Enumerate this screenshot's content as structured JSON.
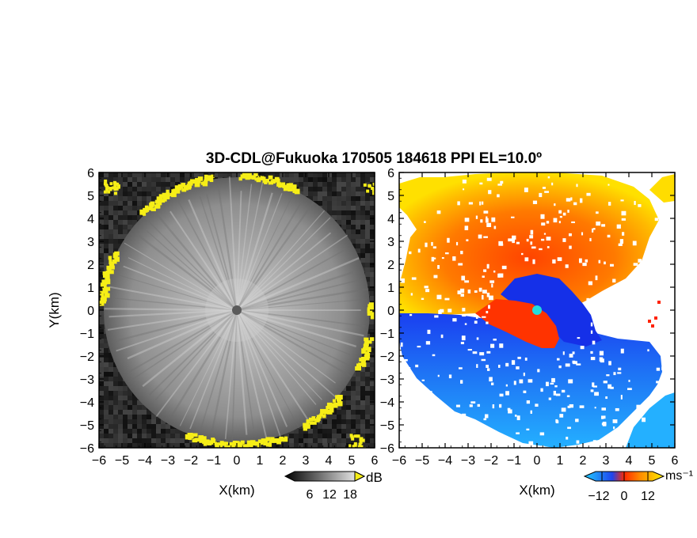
{
  "title": "3D-CDL@Fukuoka 170505 184618 PPI EL=10.0º",
  "chart_data": [
    {
      "type": "heatmap",
      "name": "backscatter-intensity",
      "xlabel": "X(km)",
      "ylabel": "Y(km)",
      "xlim": [
        -6,
        6
      ],
      "ylim": [
        -6,
        6
      ],
      "xticks": [
        "−6",
        "−5",
        "−4",
        "−3",
        "−2",
        "−1",
        "0",
        "1",
        "2",
        "3",
        "4",
        "5",
        "6"
      ],
      "yticks": [
        "6",
        "5",
        "4",
        "3",
        "2",
        "1",
        "0",
        "−1",
        "−2",
        "−3",
        "−4",
        "−5",
        "−6"
      ],
      "colorbar": {
        "unit": "dB",
        "ticks": [
          "6",
          "12",
          "18"
        ],
        "colormap": "grayscale",
        "extremes": [
          "black",
          "yellow"
        ]
      },
      "colors": {
        "background": "#1a1a1a",
        "inner": "#b4b4b4",
        "edge": "#f6ee17",
        "radar_marker": "#5a5a5a"
      }
    },
    {
      "type": "heatmap",
      "name": "radial-velocity",
      "xlabel": "X(km)",
      "xlim": [
        -6,
        6
      ],
      "ylim": [
        -6,
        6
      ],
      "xticks": [
        "−6",
        "−5",
        "−4",
        "−3",
        "−2",
        "−1",
        "0",
        "1",
        "2",
        "3",
        "4",
        "5",
        "6"
      ],
      "yticks": [
        "6",
        "5",
        "4",
        "3",
        "2",
        "1",
        "0",
        "−1",
        "−2",
        "−3",
        "−4",
        "−5",
        "−6"
      ],
      "colorbar": {
        "unit": "ms⁻¹",
        "ticks": [
          "−12",
          "0",
          "12"
        ],
        "colormap": "blue-cyan-red-yellow"
      },
      "colors": {
        "positive_far": "#ffcc00",
        "positive_near": "#ff3300",
        "negative_near": "#1133ee",
        "negative_far": "#22aaff",
        "radar_marker": "#22dddd"
      }
    }
  ]
}
